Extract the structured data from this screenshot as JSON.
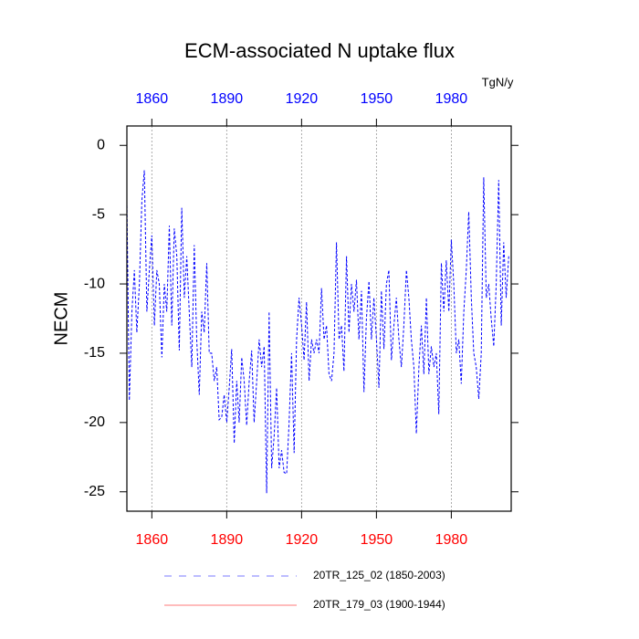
{
  "chart_data": {
    "type": "line",
    "title": "ECM-associated N uptake flux",
    "ylabel": "NECM",
    "units": "TgN/y",
    "x": [
      1850,
      1851,
      1852,
      1853,
      1854,
      1855,
      1856,
      1857,
      1858,
      1859,
      1860,
      1861,
      1862,
      1863,
      1864,
      1865,
      1866,
      1867,
      1868,
      1869,
      1870,
      1871,
      1872,
      1873,
      1874,
      1875,
      1876,
      1877,
      1878,
      1879,
      1880,
      1881,
      1882,
      1883,
      1884,
      1885,
      1886,
      1887,
      1888,
      1889,
      1890,
      1891,
      1892,
      1893,
      1894,
      1895,
      1896,
      1897,
      1898,
      1899,
      1900,
      1901,
      1902,
      1903,
      1904,
      1905,
      1906,
      1907,
      1908,
      1909,
      1910,
      1911,
      1912,
      1913,
      1914,
      1915,
      1916,
      1917,
      1918,
      1919,
      1920,
      1921,
      1922,
      1923,
      1924,
      1925,
      1926,
      1927,
      1928,
      1929,
      1930,
      1931,
      1932,
      1933,
      1934,
      1935,
      1936,
      1937,
      1938,
      1939,
      1940,
      1941,
      1942,
      1943,
      1944,
      1945,
      1946,
      1947,
      1948,
      1949,
      1950,
      1951,
      1952,
      1953,
      1954,
      1955,
      1956,
      1957,
      1958,
      1959,
      1960,
      1961,
      1962,
      1963,
      1964,
      1965,
      1966,
      1967,
      1968,
      1969,
      1970,
      1971,
      1972,
      1973,
      1974,
      1975,
      1976,
      1977,
      1978,
      1979,
      1980,
      1981,
      1982,
      1983,
      1984,
      1985,
      1986,
      1987,
      1988,
      1989,
      1990,
      1991,
      1992,
      1993,
      1994,
      1995,
      1996,
      1997,
      1998,
      1999,
      2000,
      2001,
      2002,
      2003
    ],
    "series": [
      {
        "name": "20TR_125_02 (1850-2003)",
        "color": "#0000ff",
        "dash": true,
        "values": [
          -4,
          -18.4,
          -12,
          -9,
          -13.5,
          -10,
          -4,
          -1.8,
          -12,
          -9,
          -6.5,
          -13,
          -9,
          -10,
          -15.3,
          -10,
          -12,
          -5.8,
          -13,
          -6,
          -8,
          -14.8,
          -4.5,
          -11,
          -8,
          -12,
          -16,
          -7.2,
          -14,
          -18,
          -12,
          -13.5,
          -8.5,
          -15,
          -15,
          -17,
          -16,
          -19.8,
          -19.6,
          -18,
          -20,
          -17.5,
          -14.7,
          -21.5,
          -17,
          -20,
          -15.3,
          -17,
          -20.2,
          -17,
          -14.8,
          -20,
          -17,
          -14,
          -16,
          -14.5,
          -25.1,
          -12,
          -23.3,
          -21,
          -17.5,
          -23.3,
          -22,
          -23.6,
          -23.7,
          -20,
          -15,
          -22.2,
          -14,
          -11,
          -13,
          -15.5,
          -11.3,
          -17,
          -14,
          -15,
          -14,
          -15,
          -10.3,
          -14,
          -13,
          -16.5,
          -17,
          -15,
          -7,
          -14,
          -13,
          -16.3,
          -8,
          -13.5,
          -10,
          -12,
          -9.7,
          -14,
          -10.5,
          -17.8,
          -12.5,
          -9.8,
          -14,
          -11,
          -14,
          -17.5,
          -10.5,
          -14.7,
          -10,
          -9,
          -15.5,
          -13,
          -11,
          -14,
          -16,
          -13,
          -9,
          -11,
          -14,
          -16,
          -20.8,
          -16,
          -13,
          -16.5,
          -11,
          -16.5,
          -14.5,
          -16,
          -15,
          -19.4,
          -8.5,
          -12,
          -8.3,
          -12,
          -6.8,
          -10,
          -15,
          -14,
          -17.2,
          -12,
          -9,
          -4.8,
          -11,
          -15,
          -16,
          -18.3,
          -15,
          -2.3,
          -11,
          -10,
          -12.5,
          -14.5,
          -10,
          -2.5,
          -13,
          -7,
          -11,
          -8
        ]
      },
      {
        "name": "20TR_179_03 (1900-1944)",
        "color": "#ff0000",
        "dash": false,
        "values": [
          null,
          null,
          null,
          null,
          null,
          null,
          null,
          null,
          null,
          null,
          null,
          null,
          null,
          null,
          null,
          null,
          null,
          null,
          null,
          null,
          null,
          null,
          null,
          null,
          null,
          null,
          null,
          null,
          null,
          null,
          null,
          null,
          null,
          null,
          null,
          null,
          null,
          null,
          null,
          null,
          null,
          null,
          null,
          null,
          null,
          null,
          null,
          null,
          null,
          null,
          null,
          null,
          null,
          null,
          null,
          null,
          null,
          null,
          null,
          null,
          null,
          null,
          null,
          null,
          null,
          null,
          null,
          null,
          null,
          null,
          null,
          null,
          null,
          null,
          null,
          null,
          null,
          null,
          null,
          null,
          null,
          null,
          null,
          null,
          null,
          null,
          null,
          null,
          null,
          null,
          null,
          null,
          null,
          null,
          null,
          null,
          null,
          null,
          null,
          null,
          null,
          null,
          null,
          null,
          null,
          null,
          null,
          null,
          null,
          null,
          null,
          null,
          null,
          null,
          null,
          null,
          null,
          null,
          null,
          null,
          null,
          null,
          null,
          null,
          null,
          null,
          null,
          null,
          null,
          null,
          null,
          null,
          null,
          null,
          null,
          null,
          null,
          null,
          null,
          null,
          null,
          null,
          null,
          null,
          null,
          null,
          null,
          null,
          null,
          null,
          null,
          null,
          null,
          null
        ]
      }
    ],
    "xlim": [
      1850,
      2004
    ],
    "xticks": [
      1860,
      1890,
      1920,
      1950,
      1980
    ],
    "top_tick_color": "#0000ff",
    "bottom_tick_color": "#ff0000",
    "ylim": [
      -26.4,
      1.4
    ],
    "yticks": [
      0,
      -5,
      -10,
      -15,
      -20,
      -25
    ],
    "grid": true
  }
}
